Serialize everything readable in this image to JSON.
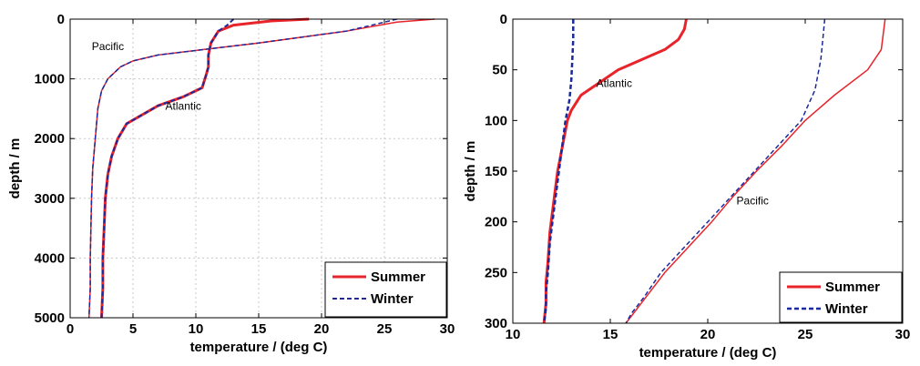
{
  "chart_data": [
    {
      "type": "line",
      "title": "",
      "xlabel": "temperature / (deg C)",
      "ylabel": "depth / m",
      "xlim": [
        0,
        30
      ],
      "ylim": [
        0,
        5000
      ],
      "y_inverted": true,
      "grid": true,
      "legend_position": "bottom-right",
      "xticks": [
        0,
        5,
        10,
        15,
        20,
        25,
        30
      ],
      "yticks": [
        0,
        1000,
        2000,
        3000,
        4000,
        5000
      ],
      "annotations": [
        {
          "text": "Pacific",
          "x": 3.0,
          "y": 520
        },
        {
          "text": "Atlantic",
          "x": 9.0,
          "y": 1520
        }
      ],
      "series": [
        {
          "name": "Summer",
          "color": "#e8232a",
          "style": "solid",
          "width": 3,
          "x": [
            19,
            16,
            13,
            11.8,
            11.2,
            11.0,
            11.0,
            10.8,
            10.5,
            9.0,
            7.0,
            4.5,
            3.8,
            3.3,
            3.0,
            2.8,
            2.7,
            2.6,
            2.6,
            2.5
          ],
          "y": [
            0,
            30,
            100,
            200,
            400,
            600,
            800,
            950,
            1150,
            1300,
            1450,
            1750,
            2000,
            2300,
            2600,
            3000,
            3500,
            4000,
            4500,
            5000
          ]
        },
        {
          "name": "Winter",
          "color": "#1a2a9c",
          "style": "dashed",
          "width": 2,
          "x": [
            13,
            12.5,
            11.8,
            11.2,
            11.0,
            11.0,
            10.8,
            10.5,
            9.0,
            7.0,
            4.5,
            3.8,
            3.3,
            3.0,
            2.8,
            2.7,
            2.6,
            2.6,
            2.5
          ],
          "y": [
            0,
            100,
            200,
            400,
            600,
            800,
            950,
            1150,
            1300,
            1450,
            1750,
            2000,
            2300,
            2600,
            3000,
            3500,
            4000,
            4500,
            5000
          ]
        },
        {
          "name": "",
          "color": "#e8232a",
          "style": "solid",
          "width": 1.5,
          "x": [
            29,
            26,
            22,
            15,
            11,
            7,
            5,
            4,
            3,
            2.5,
            2.2,
            2.0,
            1.8,
            1.7,
            1.6,
            1.6,
            1.5
          ],
          "y": [
            0,
            50,
            200,
            400,
            500,
            600,
            700,
            800,
            1000,
            1200,
            1500,
            2000,
            2500,
            3000,
            4000,
            4500,
            5000
          ]
        },
        {
          "name": "",
          "color": "#1a2a9c",
          "style": "dashed",
          "width": 1.5,
          "x": [
            26,
            24,
            22,
            15,
            11,
            7,
            5,
            4,
            3,
            2.5,
            2.2,
            2.0,
            1.8,
            1.7,
            1.6,
            1.6,
            1.5
          ],
          "y": [
            0,
            100,
            200,
            400,
            500,
            600,
            700,
            800,
            1000,
            1200,
            1500,
            2000,
            2500,
            3000,
            4000,
            4500,
            5000
          ]
        }
      ]
    },
    {
      "type": "line",
      "title": "",
      "xlabel": "temperature / (deg C)",
      "ylabel": "depth / m",
      "xlim": [
        10,
        30
      ],
      "ylim": [
        0,
        300
      ],
      "y_inverted": true,
      "grid": false,
      "legend_position": "bottom-right",
      "xticks": [
        10,
        15,
        20,
        25,
        30
      ],
      "yticks": [
        0,
        50,
        100,
        150,
        200,
        250,
        300
      ],
      "annotations": [
        {
          "text": "Atlantic",
          "x": 15.2,
          "y": 67
        },
        {
          "text": "Pacific",
          "x": 22.3,
          "y": 183
        }
      ],
      "series": [
        {
          "name": "Summer",
          "color": "#e8232a",
          "style": "solid",
          "width": 3,
          "x": [
            18.9,
            18.8,
            18.5,
            17.8,
            15.4,
            13.5,
            13.0,
            12.8,
            12.6,
            12.3,
            12.1,
            11.9,
            11.8,
            11.7,
            11.7,
            11.6
          ],
          "y": [
            0,
            10,
            20,
            30,
            50,
            75,
            90,
            100,
            120,
            150,
            180,
            210,
            240,
            260,
            280,
            300
          ]
        },
        {
          "name": "Winter",
          "color": "#1a2a9c",
          "style": "dashed",
          "width": 2.5,
          "x": [
            13.1,
            13.1,
            13.05,
            13.0,
            12.9,
            12.7,
            12.5,
            12.3,
            12.1,
            11.9,
            11.8,
            11.7,
            11.7,
            11.6
          ],
          "y": [
            0,
            20,
            40,
            60,
            80,
            100,
            130,
            160,
            190,
            220,
            250,
            270,
            285,
            300
          ]
        },
        {
          "name": "",
          "color": "#e8232a",
          "style": "solid",
          "width": 1.5,
          "x": [
            29.1,
            28.9,
            28.2,
            26.5,
            25.0,
            23.8,
            22.5,
            21.3,
            20.2,
            19.0,
            17.8,
            16.8,
            16.2,
            15.8
          ],
          "y": [
            0,
            30,
            50,
            75,
            100,
            125,
            150,
            175,
            200,
            225,
            250,
            275,
            290,
            300
          ]
        },
        {
          "name": "",
          "color": "#1a2a9c",
          "style": "dashed",
          "width": 1.5,
          "x": [
            26.0,
            25.9,
            25.8,
            25.5,
            24.8,
            23.6,
            22.4,
            21.2,
            20.0,
            18.8,
            17.6,
            16.7,
            16.1,
            15.8
          ],
          "y": [
            0,
            20,
            40,
            70,
            100,
            125,
            150,
            175,
            200,
            225,
            250,
            275,
            290,
            300
          ]
        }
      ]
    }
  ]
}
